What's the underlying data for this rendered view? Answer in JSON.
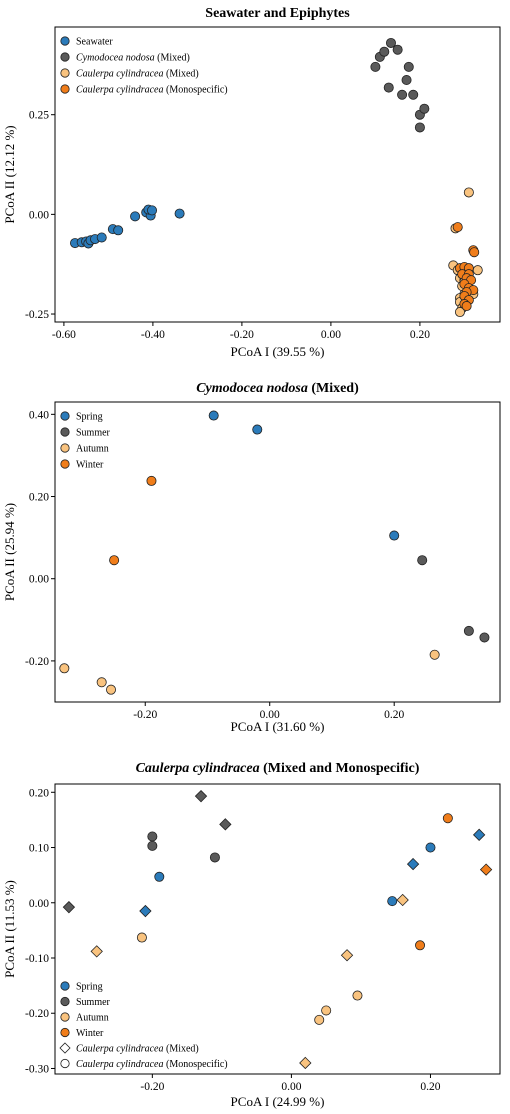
{
  "colors": {
    "blue": "#2b7bba",
    "grey": "#5a5a5a",
    "lightorange": "#f9c37f",
    "orange": "#f07d1a",
    "white": "#ffffff"
  },
  "chart_data": [
    {
      "type": "scatter",
      "title": "Seawater and Epiphytes",
      "xlabel": "PCoA I (39.55 %)",
      "ylabel": "PCoA II (12.12 %)",
      "xlim": [
        -0.62,
        0.38
      ],
      "ylim": [
        -0.27,
        0.47
      ],
      "xticks": [
        "-0.60",
        "-0.40",
        "-0.20",
        "0.00",
        "0.20"
      ],
      "yticks": [
        "-0.25",
        "0.00",
        "0.25"
      ],
      "grid": false,
      "legend_position": "top-left",
      "legend": [
        {
          "label": "Seawater",
          "italic": "",
          "suffix": "",
          "color": "blue",
          "shape": "circle"
        },
        {
          "label": "",
          "italic": "Cymodocea nodosa",
          "suffix": " (Mixed)",
          "color": "grey",
          "shape": "circle"
        },
        {
          "label": "",
          "italic": "Caulerpa cylindracea",
          "suffix": " (Mixed)",
          "color": "lightorange",
          "shape": "circle"
        },
        {
          "label": "",
          "italic": "Caulerpa cylindracea",
          "suffix": " (Monospecific)",
          "color": "orange",
          "shape": "circle"
        }
      ],
      "series": [
        {
          "name": "Seawater",
          "color": "blue",
          "shape": "circle",
          "points": [
            [
              -0.575,
              -0.072
            ],
            [
              -0.56,
              -0.07
            ],
            [
              -0.55,
              -0.068
            ],
            [
              -0.545,
              -0.073
            ],
            [
              -0.54,
              -0.065
            ],
            [
              -0.53,
              -0.062
            ],
            [
              -0.515,
              -0.058
            ],
            [
              -0.49,
              -0.037
            ],
            [
              -0.478,
              -0.04
            ],
            [
              -0.44,
              -0.005
            ],
            [
              -0.415,
              0.005
            ],
            [
              -0.405,
              -0.003
            ],
            [
              -0.41,
              0.012
            ],
            [
              -0.402,
              0.01
            ],
            [
              -0.34,
              0.002
            ]
          ]
        },
        {
          "name": "Cymodocea nodosa (Mixed)",
          "color": "grey",
          "shape": "circle",
          "points": [
            [
              0.1,
              0.37
            ],
            [
              0.11,
              0.395
            ],
            [
              0.12,
              0.408
            ],
            [
              0.135,
              0.43
            ],
            [
              0.15,
              0.413
            ],
            [
              0.13,
              0.318
            ],
            [
              0.16,
              0.3
            ],
            [
              0.175,
              0.37
            ],
            [
              0.17,
              0.337
            ],
            [
              0.185,
              0.3
            ],
            [
              0.2,
              0.25
            ],
            [
              0.21,
              0.265
            ],
            [
              0.2,
              0.218
            ]
          ]
        },
        {
          "name": "Caulerpa cylindracea (Mixed)",
          "color": "lightorange",
          "shape": "circle",
          "points": [
            [
              0.31,
              0.055
            ],
            [
              0.28,
              -0.035
            ],
            [
              0.275,
              -0.128
            ],
            [
              0.285,
              -0.14
            ],
            [
              0.29,
              -0.16
            ],
            [
              0.295,
              -0.18
            ],
            [
              0.3,
              -0.2
            ],
            [
              0.29,
              -0.21
            ],
            [
              0.29,
              -0.22
            ],
            [
              0.295,
              -0.235
            ],
            [
              0.29,
              -0.245
            ],
            [
              0.3,
              -0.165
            ],
            [
              0.305,
              -0.155
            ],
            [
              0.31,
              -0.185
            ],
            [
              0.32,
              -0.2
            ],
            [
              0.33,
              -0.14
            ],
            [
              0.3,
              -0.17
            ]
          ]
        },
        {
          "name": "Caulerpa cylindracea (Monospecific)",
          "color": "orange",
          "shape": "circle",
          "points": [
            [
              0.285,
              -0.032
            ],
            [
              0.32,
              -0.09
            ],
            [
              0.322,
              -0.095
            ],
            [
              0.29,
              -0.135
            ],
            [
              0.3,
              -0.132
            ],
            [
              0.31,
              -0.135
            ],
            [
              0.295,
              -0.15
            ],
            [
              0.31,
              -0.15
            ],
            [
              0.305,
              -0.16
            ],
            [
              0.315,
              -0.165
            ],
            [
              0.3,
              -0.175
            ],
            [
              0.31,
              -0.185
            ],
            [
              0.32,
              -0.19
            ],
            [
              0.305,
              -0.195
            ],
            [
              0.3,
              -0.205
            ],
            [
              0.31,
              -0.215
            ],
            [
              0.3,
              -0.225
            ],
            [
              0.305,
              -0.23
            ]
          ]
        }
      ]
    },
    {
      "type": "scatter",
      "title": "",
      "title_italic": "Cymodocea nodosa",
      "title_suffix": "  (Mixed)",
      "xlabel": "PCoA I (31.60 %)",
      "ylabel": "PCoA II (25.94 %)",
      "xlim": [
        -0.345,
        0.37
      ],
      "ylim": [
        -0.3,
        0.43
      ],
      "xticks": [
        "-0.20",
        "0.00",
        "0.20"
      ],
      "yticks": [
        "-0.20",
        "0.00",
        "0.20",
        "0.40"
      ],
      "grid": false,
      "legend_position": "top-left",
      "legend": [
        {
          "label": "Spring",
          "italic": "",
          "suffix": "",
          "color": "blue",
          "shape": "circle"
        },
        {
          "label": "Summer",
          "italic": "",
          "suffix": "",
          "color": "grey",
          "shape": "circle"
        },
        {
          "label": "Autumn",
          "italic": "",
          "suffix": "",
          "color": "lightorange",
          "shape": "circle"
        },
        {
          "label": "Winter",
          "italic": "",
          "suffix": "",
          "color": "orange",
          "shape": "circle"
        }
      ],
      "series": [
        {
          "name": "Spring",
          "color": "blue",
          "shape": "circle",
          "points": [
            [
              -0.09,
              0.397
            ],
            [
              -0.02,
              0.363
            ],
            [
              0.2,
              0.105
            ]
          ]
        },
        {
          "name": "Summer",
          "color": "grey",
          "shape": "circle",
          "points": [
            [
              0.245,
              0.045
            ],
            [
              0.32,
              -0.127
            ],
            [
              0.345,
              -0.143
            ]
          ]
        },
        {
          "name": "Autumn",
          "color": "lightorange",
          "shape": "circle",
          "points": [
            [
              0.265,
              -0.185
            ],
            [
              -0.33,
              -0.218
            ],
            [
              -0.27,
              -0.252
            ],
            [
              -0.255,
              -0.27
            ]
          ]
        },
        {
          "name": "Winter",
          "color": "orange",
          "shape": "circle",
          "points": [
            [
              -0.19,
              0.238
            ],
            [
              -0.25,
              0.045
            ]
          ]
        }
      ]
    },
    {
      "type": "scatter",
      "title": "",
      "title_italic": "Caulerpa cylindracea",
      "title_suffix": "  (Mixed and Monospecific)",
      "xlabel": "PCoA I (24.99 %)",
      "ylabel": "PCoA II (11.53 %)",
      "xlim": [
        -0.34,
        0.3
      ],
      "ylim": [
        -0.31,
        0.215
      ],
      "xticks": [
        "-0.20",
        "0.00",
        "0.20"
      ],
      "yticks": [
        "-0.30",
        "-0.20",
        "-0.10",
        "0.00",
        "0.10",
        "0.20"
      ],
      "grid": false,
      "legend_position": "bottom-left",
      "legend": [
        {
          "label": "Spring",
          "italic": "",
          "suffix": "",
          "color": "blue",
          "shape": "circle"
        },
        {
          "label": "Summer",
          "italic": "",
          "suffix": "",
          "color": "grey",
          "shape": "circle"
        },
        {
          "label": "Autumn",
          "italic": "",
          "suffix": "",
          "color": "lightorange",
          "shape": "circle"
        },
        {
          "label": "Winter",
          "italic": "",
          "suffix": "",
          "color": "orange",
          "shape": "circle"
        },
        {
          "label": "",
          "italic": "Caulerpa cylindracea",
          "suffix": " (Mixed)",
          "color": "white",
          "shape": "diamond"
        },
        {
          "label": "",
          "italic": "Caulerpa cylindracea",
          "suffix": " (Monospecific)",
          "color": "white",
          "shape": "circle"
        }
      ],
      "series": [
        {
          "name": "Spring",
          "color": "blue",
          "shape": "circle",
          "points": [
            [
              -0.19,
              0.047
            ],
            [
              0.145,
              0.003
            ],
            [
              0.2,
              0.1
            ]
          ]
        },
        {
          "name": "Spring",
          "color": "blue",
          "shape": "diamond",
          "points": [
            [
              -0.21,
              -0.015
            ],
            [
              0.175,
              0.07
            ],
            [
              0.27,
              0.123
            ]
          ]
        },
        {
          "name": "Summer",
          "color": "grey",
          "shape": "circle",
          "points": [
            [
              -0.2,
              0.12
            ],
            [
              -0.2,
              0.103
            ],
            [
              -0.11,
              0.082
            ]
          ]
        },
        {
          "name": "Summer",
          "color": "grey",
          "shape": "diamond",
          "points": [
            [
              -0.32,
              -0.008
            ],
            [
              -0.13,
              0.193
            ],
            [
              -0.095,
              0.142
            ]
          ]
        },
        {
          "name": "Autumn",
          "color": "lightorange",
          "shape": "circle",
          "points": [
            [
              -0.215,
              -0.063
            ],
            [
              0.095,
              -0.168
            ],
            [
              0.05,
              -0.195
            ],
            [
              0.04,
              -0.212
            ]
          ]
        },
        {
          "name": "Autumn",
          "color": "lightorange",
          "shape": "diamond",
          "points": [
            [
              -0.28,
              -0.088
            ],
            [
              0.08,
              -0.095
            ],
            [
              0.16,
              0.005
            ],
            [
              0.02,
              -0.29
            ]
          ]
        },
        {
          "name": "Winter",
          "color": "orange",
          "shape": "circle",
          "points": [
            [
              0.225,
              0.153
            ],
            [
              0.185,
              -0.077
            ]
          ]
        },
        {
          "name": "Winter",
          "color": "orange",
          "shape": "diamond",
          "points": [
            [
              0.28,
              0.06
            ]
          ]
        }
      ]
    }
  ]
}
